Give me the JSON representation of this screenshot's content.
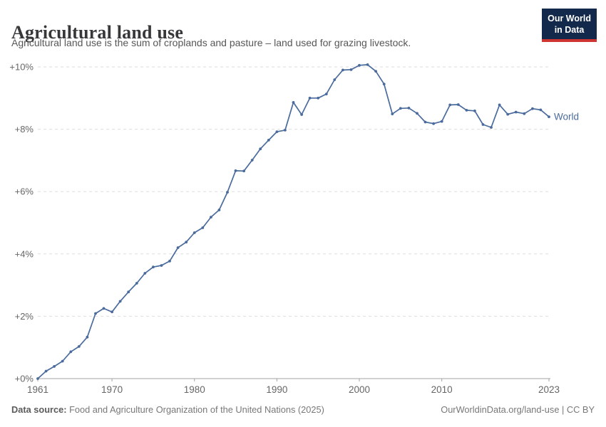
{
  "header": {
    "title": "Agricultural land use",
    "subtitle": "Agricultural land use is the sum of croplands and pasture – land used for grazing livestock."
  },
  "logo": {
    "line1": "Our World",
    "line2": "in Data"
  },
  "footer": {
    "source_label": "Data source:",
    "source_text": " Food and Agriculture Organization of the United Nations (2025)",
    "url": "OurWorldinData.org/land-use",
    "separator": " | ",
    "license": "CC BY"
  },
  "chart_data": {
    "type": "line",
    "title": "Agricultural land use",
    "xlabel": "",
    "ylabel": "",
    "xlim": [
      1961,
      2023
    ],
    "ylim": [
      0,
      10
    ],
    "grid": "dashed horizontal",
    "legend_position": "end-of-line label",
    "x": [
      1961,
      1962,
      1963,
      1964,
      1965,
      1966,
      1967,
      1968,
      1969,
      1970,
      1971,
      1972,
      1973,
      1974,
      1975,
      1976,
      1977,
      1978,
      1979,
      1980,
      1981,
      1982,
      1983,
      1984,
      1985,
      1986,
      1987,
      1988,
      1989,
      1990,
      1991,
      1992,
      1993,
      1994,
      1995,
      1996,
      1997,
      1998,
      1999,
      2000,
      2001,
      2002,
      2003,
      2004,
      2005,
      2006,
      2007,
      2008,
      2009,
      2010,
      2011,
      2012,
      2013,
      2014,
      2015,
      2016,
      2017,
      2018,
      2019,
      2020,
      2021,
      2022,
      2023
    ],
    "series": [
      {
        "name": "World",
        "values": [
          0.0,
          0.24,
          0.39,
          0.56,
          0.86,
          1.03,
          1.33,
          2.09,
          2.25,
          2.14,
          2.48,
          2.78,
          3.06,
          3.38,
          3.58,
          3.63,
          3.77,
          4.2,
          4.38,
          4.68,
          4.84,
          5.18,
          5.41,
          5.98,
          6.67,
          6.66,
          7.01,
          7.37,
          7.65,
          7.92,
          7.97,
          8.86,
          8.47,
          9.0,
          9.0,
          9.13,
          9.59,
          9.9,
          9.91,
          10.05,
          10.07,
          9.86,
          9.45,
          8.49,
          8.67,
          8.68,
          8.51,
          8.23,
          8.18,
          8.25,
          8.78,
          8.79,
          8.61,
          8.59,
          8.15,
          8.06,
          8.78,
          8.48,
          8.55,
          8.5,
          8.66,
          8.62,
          8.4
        ]
      }
    ],
    "yticks": [
      {
        "value": 0,
        "label": "+0%"
      },
      {
        "value": 2,
        "label": "+2%"
      },
      {
        "value": 4,
        "label": "+4%"
      },
      {
        "value": 6,
        "label": "+6%"
      },
      {
        "value": 8,
        "label": "+8%"
      },
      {
        "value": 10,
        "label": "+10%"
      }
    ],
    "xticks": [
      {
        "value": 1961,
        "label": "1961"
      },
      {
        "value": 1970,
        "label": "1970"
      },
      {
        "value": 1980,
        "label": "1980"
      },
      {
        "value": 1990,
        "label": "1990"
      },
      {
        "value": 2000,
        "label": "2000"
      },
      {
        "value": 2010,
        "label": "2010"
      },
      {
        "value": 2023,
        "label": "2023"
      }
    ],
    "colors": {
      "line": "#4a6b9c",
      "grid": "#dddddd",
      "axis": "#a3a3a3",
      "tick_text": "#666666",
      "logo_bg": "#12294b",
      "logo_bar": "#cf3530"
    }
  }
}
